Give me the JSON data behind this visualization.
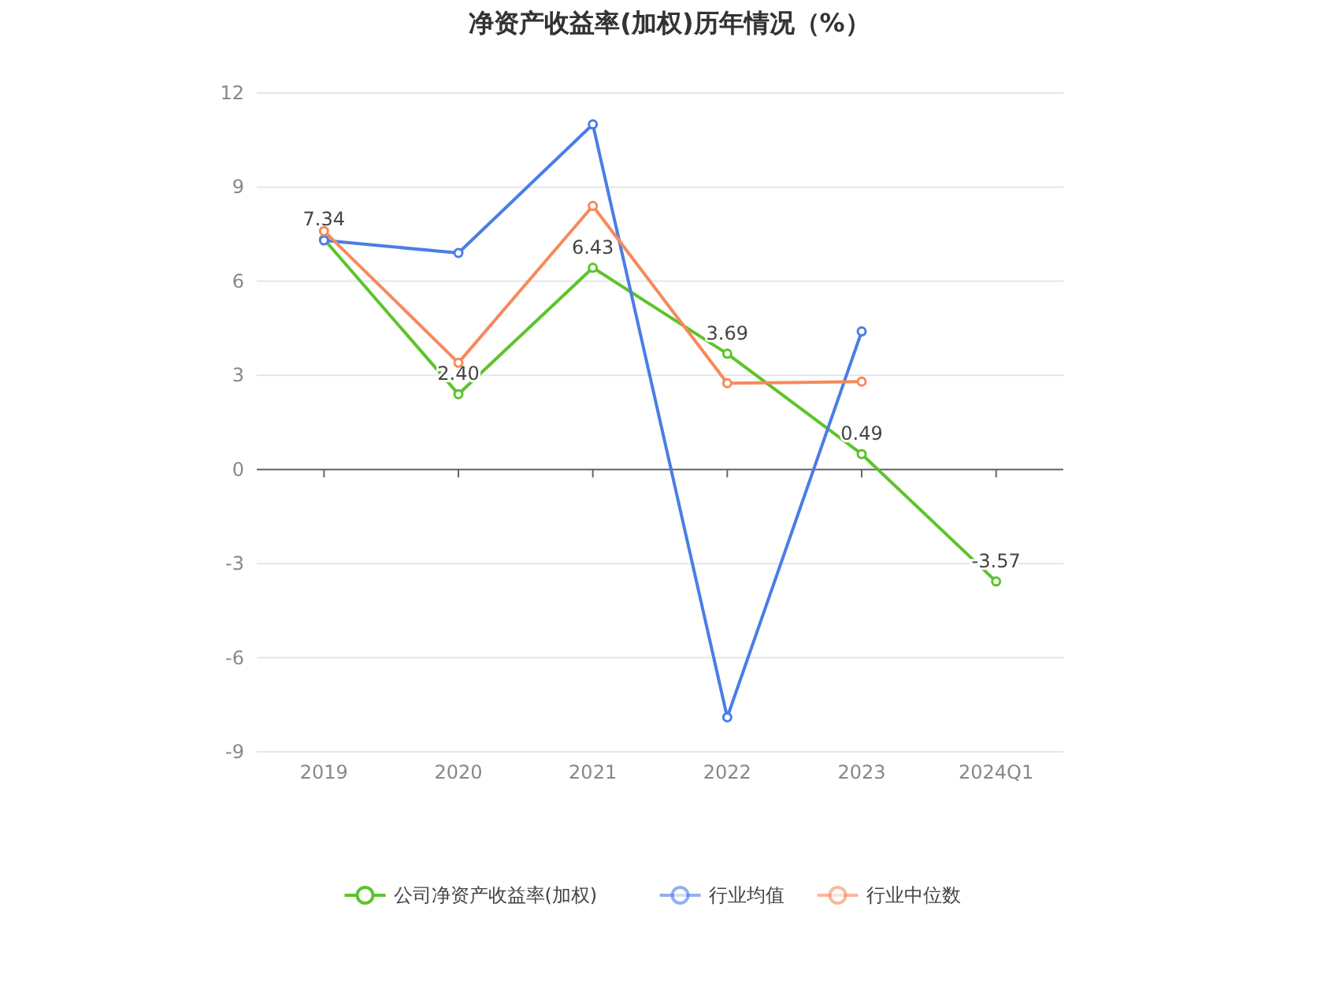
{
  "chart_data": {
    "type": "line",
    "title": "净资产收益率(加权)历年情况（%）",
    "categories": [
      "2019",
      "2020",
      "2021",
      "2022",
      "2023",
      "2024Q1"
    ],
    "series": [
      {
        "name": "公司净资产收益率(加权)",
        "color": "#5cc42a",
        "values": [
          7.34,
          2.4,
          6.43,
          3.69,
          0.49,
          -3.57
        ],
        "value_labels": [
          "7.34",
          "2.40",
          "6.43",
          "3.69",
          "0.49",
          "-3.57"
        ]
      },
      {
        "name": "行业均值",
        "color": "#4a7de6",
        "values": [
          7.3,
          6.9,
          11.0,
          -7.9,
          4.4,
          null
        ]
      },
      {
        "name": "行业中位数",
        "color": "#f7895c",
        "values": [
          7.6,
          3.4,
          8.4,
          2.75,
          2.8,
          null
        ]
      }
    ],
    "ylim": [
      -9,
      12
    ],
    "yticks": [
      -9,
      -6,
      -3,
      0,
      3,
      6,
      9,
      12
    ],
    "grid": "y",
    "legend": "bottom",
    "marker": "circle",
    "line_style": "solid"
  }
}
